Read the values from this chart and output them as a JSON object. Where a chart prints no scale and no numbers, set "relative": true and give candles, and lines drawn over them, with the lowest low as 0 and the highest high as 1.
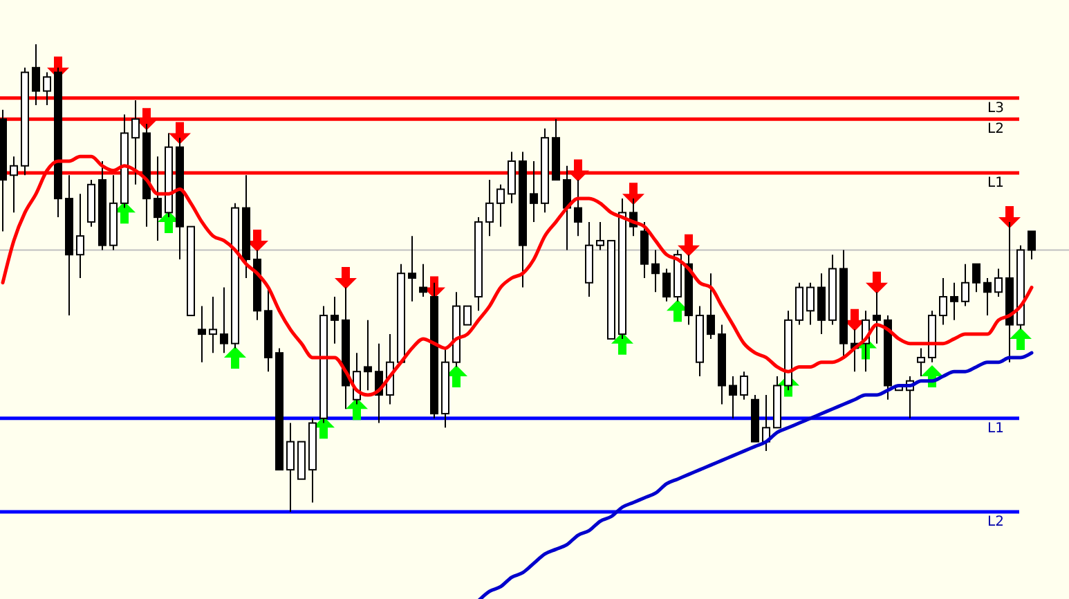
{
  "chart_data": {
    "type": "candlestick",
    "relative": true,
    "tick_labels": false,
    "categories": [
      null,
      null,
      null,
      null,
      null,
      null,
      null,
      null,
      null,
      null,
      null,
      null,
      null,
      null,
      null,
      null,
      null,
      null,
      null,
      null,
      null,
      null,
      null,
      null,
      null,
      null,
      null,
      null,
      null,
      null,
      null,
      null,
      null,
      null,
      null,
      null,
      null,
      null,
      null,
      null,
      null,
      null,
      null,
      null,
      null,
      null,
      null,
      null,
      null,
      null,
      null,
      null,
      null,
      null,
      null,
      null,
      null,
      null,
      null,
      null,
      null,
      null,
      null,
      null,
      null,
      null,
      null,
      null,
      null,
      null,
      null,
      null,
      null,
      null,
      null,
      null,
      null,
      null,
      null,
      null,
      null,
      null,
      null,
      null,
      null,
      null,
      null,
      null,
      null,
      null,
      null,
      null,
      null,
      null
    ],
    "ohlc": [
      [
        0.84,
        0.86,
        0.6,
        0.71
      ],
      [
        0.72,
        0.76,
        0.64,
        0.74
      ],
      [
        0.74,
        0.95,
        0.72,
        0.94
      ],
      [
        0.95,
        1,
        0.87,
        0.9
      ],
      [
        0.9,
        0.94,
        0.87,
        0.93
      ],
      [
        0.94,
        0.95,
        0.63,
        0.67
      ],
      [
        0.67,
        0.72,
        0.42,
        0.55
      ],
      [
        0.55,
        0.68,
        0.5,
        0.59
      ],
      [
        0.62,
        0.71,
        0.61,
        0.7
      ],
      [
        0.71,
        0.75,
        0.56,
        0.57
      ],
      [
        0.57,
        0.72,
        0.56,
        0.66
      ],
      [
        0.66,
        0.85,
        0.65,
        0.81
      ],
      [
        0.8,
        0.88,
        0.7,
        0.84
      ],
      [
        0.81,
        0.83,
        0.61,
        0.67
      ],
      [
        0.67,
        0.76,
        0.58,
        0.63
      ],
      [
        0.64,
        0.81,
        0.63,
        0.78
      ],
      [
        0.78,
        0.8,
        0.54,
        0.61
      ],
      [
        0.42,
        0.61,
        0.42,
        0.61
      ],
      [
        0.39,
        0.44,
        0.32,
        0.38
      ],
      [
        0.38,
        0.46,
        0.34,
        0.39
      ],
      [
        0.38,
        0.48,
        0.34,
        0.36
      ],
      [
        0.36,
        0.66,
        0.35,
        0.65
      ],
      [
        0.65,
        0.72,
        0.5,
        0.54
      ],
      [
        0.54,
        0.56,
        0.41,
        0.43
      ],
      [
        0.43,
        0.48,
        0.3,
        0.33
      ],
      [
        0.34,
        0.35,
        0.09,
        0.09
      ],
      [
        0.09,
        0.19,
        0,
        0.15
      ],
      [
        0.07,
        0.15,
        0.07,
        0.15
      ],
      [
        0.09,
        0.2,
        0.02,
        0.19
      ],
      [
        0.2,
        0.44,
        0.19,
        0.42
      ],
      [
        0.42,
        0.46,
        0.36,
        0.41
      ],
      [
        0.41,
        0.48,
        0.22,
        0.27
      ],
      [
        0.24,
        0.34,
        0.23,
        0.3
      ],
      [
        0.31,
        0.41,
        0.26,
        0.3
      ],
      [
        0.3,
        0.36,
        0.19,
        0.25
      ],
      [
        0.25,
        0.38,
        0.23,
        0.32
      ],
      [
        0.32,
        0.53,
        0.32,
        0.51
      ],
      [
        0.51,
        0.59,
        0.45,
        0.5
      ],
      [
        0.48,
        0.53,
        0.46,
        0.47
      ],
      [
        0.46,
        0.49,
        0.2,
        0.21
      ],
      [
        0.21,
        0.35,
        0.18,
        0.32
      ],
      [
        0.32,
        0.47,
        0.31,
        0.44
      ],
      [
        0.4,
        0.44,
        0.4,
        0.44
      ],
      [
        0.46,
        0.63,
        0.43,
        0.62
      ],
      [
        0.62,
        0.71,
        0.59,
        0.66
      ],
      [
        0.66,
        0.7,
        0.61,
        0.69
      ],
      [
        0.68,
        0.77,
        0.66,
        0.75
      ],
      [
        0.75,
        0.77,
        0.48,
        0.57
      ],
      [
        0.68,
        0.75,
        0.62,
        0.66
      ],
      [
        0.66,
        0.82,
        0.64,
        0.8
      ],
      [
        0.8,
        0.84,
        0.71,
        0.71
      ],
      [
        0.71,
        0.74,
        0.56,
        0.65
      ],
      [
        0.65,
        0.71,
        0.59,
        0.62
      ],
      [
        0.49,
        0.62,
        0.46,
        0.57
      ],
      [
        0.57,
        0.62,
        0.56,
        0.58
      ],
      [
        0.37,
        0.58,
        0.37,
        0.58
      ],
      [
        0.38,
        0.67,
        0.37,
        0.64
      ],
      [
        0.64,
        0.67,
        0.59,
        0.61
      ],
      [
        0.6,
        0.62,
        0.5,
        0.53
      ],
      [
        0.53,
        0.56,
        0.47,
        0.51
      ],
      [
        0.51,
        0.52,
        0.45,
        0.46
      ],
      [
        0.46,
        0.56,
        0.45,
        0.55
      ],
      [
        0.53,
        0.55,
        0.4,
        0.42
      ],
      [
        0.32,
        0.44,
        0.29,
        0.42
      ],
      [
        0.42,
        0.51,
        0.37,
        0.38
      ],
      [
        0.38,
        0.4,
        0.23,
        0.27
      ],
      [
        0.27,
        0.29,
        0.2,
        0.25
      ],
      [
        0.25,
        0.3,
        0.24,
        0.29
      ],
      [
        0.24,
        0.25,
        0.15,
        0.15
      ],
      [
        0.15,
        0.25,
        0.13,
        0.18
      ],
      [
        0.18,
        0.29,
        0.18,
        0.27
      ],
      [
        0.27,
        0.43,
        0.26,
        0.41
      ],
      [
        0.41,
        0.49,
        0.4,
        0.48
      ],
      [
        0.43,
        0.49,
        0.4,
        0.48
      ],
      [
        0.48,
        0.51,
        0.38,
        0.41
      ],
      [
        0.41,
        0.55,
        0.4,
        0.52
      ],
      [
        0.52,
        0.56,
        0.33,
        0.36
      ],
      [
        0.36,
        0.39,
        0.3,
        0.35
      ],
      [
        0.36,
        0.43,
        0.3,
        0.41
      ],
      [
        0.42,
        0.47,
        0.36,
        0.41
      ],
      [
        0.41,
        0.42,
        0.24,
        0.27
      ],
      [
        0.26,
        0.27,
        0.26,
        0.27
      ],
      [
        0.26,
        0.29,
        0.2,
        0.28
      ],
      [
        0.32,
        0.35,
        0.29,
        0.33
      ],
      [
        0.33,
        0.43,
        0.32,
        0.42
      ],
      [
        0.42,
        0.5,
        0.4,
        0.46
      ],
      [
        0.46,
        0.49,
        0.41,
        0.45
      ],
      [
        0.45,
        0.53,
        0.44,
        0.49
      ],
      [
        0.53,
        0.53,
        0.47,
        0.49
      ],
      [
        0.49,
        0.5,
        0.42,
        0.47
      ],
      [
        0.47,
        0.52,
        0.46,
        0.5
      ],
      [
        0.5,
        0.62,
        0.32,
        0.4
      ],
      [
        0.4,
        0.57,
        0.39,
        0.56
      ],
      [
        0.6,
        0.6,
        0.54,
        0.56
      ]
    ],
    "series": [
      {
        "type": "line",
        "color": "#ff0000",
        "values": [
          0.49,
          0.58,
          0.64,
          0.68,
          0.73,
          0.75,
          0.75,
          0.76,
          0.76,
          0.74,
          0.73,
          0.74,
          0.73,
          0.71,
          0.68,
          0.68,
          0.69,
          0.66,
          0.62,
          0.59,
          0.58,
          0.56,
          0.53,
          0.51,
          0.48,
          0.43,
          0.39,
          0.36,
          0.33,
          0.33,
          0.33,
          0.3,
          0.26,
          0.25,
          0.26,
          0.29,
          0.32,
          0.35,
          0.37,
          0.36,
          0.35,
          0.37,
          0.38,
          0.41,
          0.44,
          0.48,
          0.5,
          0.51,
          0.54,
          0.59,
          0.62,
          0.65,
          0.67,
          0.67,
          0.66,
          0.64,
          0.63,
          0.62,
          0.61,
          0.58,
          0.55,
          0.54,
          0.52,
          0.49,
          0.48,
          0.44,
          0.4,
          0.36,
          0.34,
          0.33,
          0.31,
          0.3,
          0.31,
          0.31,
          0.32,
          0.32,
          0.33,
          0.35,
          0.37,
          0.4,
          0.39,
          0.37,
          0.36,
          0.36,
          0.36,
          0.36,
          0.37,
          0.38,
          0.38,
          0.38,
          0.41,
          0.42,
          0.44,
          0.48
        ]
      },
      {
        "type": "line",
        "color": "#0000cc",
        "values": [
          null,
          null,
          null,
          null,
          null,
          null,
          null,
          null,
          null,
          null,
          null,
          null,
          null,
          null,
          null,
          null,
          null,
          null,
          null,
          null,
          null,
          null,
          null,
          null,
          null,
          null,
          null,
          null,
          null,
          null,
          null,
          null,
          null,
          null,
          null,
          null,
          null,
          null,
          null,
          null,
          null,
          null,
          null,
          -0.19,
          -0.17,
          -0.16,
          -0.14,
          -0.13,
          -0.11,
          -0.09,
          -0.08,
          -0.07,
          -0.05,
          -0.04,
          -0.02,
          -0.01,
          0.01,
          0.02,
          0.03,
          0.04,
          0.06,
          0.07,
          0.08,
          0.09,
          0.1,
          0.11,
          0.12,
          0.13,
          0.14,
          0.15,
          0.17,
          0.18,
          0.19,
          0.2,
          0.21,
          0.22,
          0.23,
          0.24,
          0.25,
          0.25,
          0.26,
          0.27,
          0.27,
          0.28,
          0.28,
          0.29,
          0.3,
          0.3,
          0.31,
          0.32,
          0.32,
          0.33,
          0.33,
          0.34
        ]
      },
      {
        "type": "scatter",
        "color": "#00ff00",
        "values": [
          null,
          null,
          null,
          null,
          null,
          null,
          null,
          null,
          null,
          null,
          null,
          0.64,
          null,
          null,
          null,
          0.62,
          null,
          null,
          null,
          null,
          null,
          0.33,
          null,
          null,
          null,
          null,
          null,
          null,
          null,
          0.18,
          null,
          null,
          0.22,
          null,
          null,
          null,
          null,
          null,
          null,
          null,
          null,
          0.29,
          null,
          null,
          null,
          null,
          null,
          null,
          null,
          null,
          null,
          null,
          null,
          null,
          null,
          null,
          0.36,
          null,
          null,
          null,
          null,
          0.43,
          null,
          null,
          null,
          null,
          null,
          null,
          null,
          null,
          null,
          0.27,
          null,
          null,
          null,
          null,
          null,
          null,
          0.35,
          null,
          null,
          null,
          null,
          null,
          0.29,
          null,
          null,
          null,
          null,
          null,
          null,
          null,
          0.37,
          null
        ]
      },
      {
        "type": "scatter",
        "color": "#ff0000",
        "values": [
          null,
          null,
          null,
          null,
          null,
          0.95,
          null,
          null,
          null,
          null,
          null,
          null,
          null,
          0.84,
          null,
          null,
          0.81,
          null,
          null,
          null,
          null,
          null,
          null,
          0.58,
          null,
          null,
          null,
          null,
          null,
          null,
          null,
          0.5,
          null,
          null,
          null,
          null,
          null,
          null,
          null,
          0.48,
          null,
          null,
          null,
          null,
          null,
          null,
          null,
          null,
          null,
          null,
          null,
          null,
          0.73,
          null,
          null,
          null,
          null,
          0.68,
          null,
          null,
          null,
          null,
          0.57,
          null,
          null,
          null,
          null,
          null,
          null,
          null,
          null,
          null,
          null,
          null,
          null,
          null,
          null,
          0.41,
          null,
          0.49,
          null,
          null,
          null,
          null,
          null,
          null,
          null,
          null,
          null,
          null,
          null,
          0.63,
          null,
          null
        ]
      }
    ],
    "ref_lines": [
      {
        "axis": "y",
        "value": 0.885,
        "label": "L3",
        "color": "#ff0000"
      },
      {
        "axis": "y",
        "value": 0.84,
        "label": "L2",
        "color": "#ff0000"
      },
      {
        "axis": "y",
        "value": 0.725,
        "label": "L1",
        "color": "#ff0000"
      },
      {
        "axis": "y",
        "value": 0.56,
        "label": null,
        "color": "#c0c0c0"
      },
      {
        "axis": "y",
        "value": 0.2,
        "label": "L1",
        "color": "#0000ff"
      },
      {
        "axis": "y",
        "value": 0,
        "label": "L2",
        "color": "#0000ff"
      }
    ]
  }
}
